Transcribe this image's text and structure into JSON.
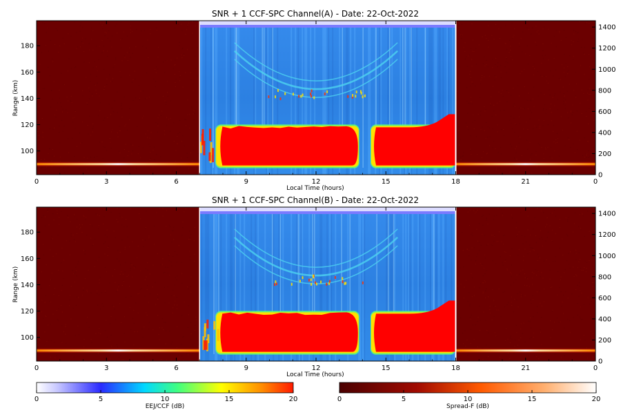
{
  "panels": [
    {
      "chart_data": {
        "type": "heatmap",
        "title": "SNR + 1 CCF-SPC Channel(A) - Date: 22-Oct-2022",
        "xlabel": "Local Time (hours)",
        "ylabel": "Range (km)",
        "x_ticks": [
          "0",
          "3",
          "6",
          "9",
          "12",
          "15",
          "18",
          "21",
          "0"
        ],
        "y_ticks": [
          100,
          120,
          140,
          160,
          180
        ],
        "y2_ticks": [
          0,
          200,
          400,
          600,
          800,
          1000,
          1200,
          1400
        ],
        "ylim": [
          82,
          199
        ],
        "y2lim": [
          0,
          1460
        ],
        "spread_f_window_hours": [
          [
            0,
            7
          ],
          [
            18,
            24
          ]
        ],
        "eej_window_hours": [
          7,
          18
        ],
        "features": [
          {
            "name": "EEJ/CCF echo band",
            "start_hour": 7.8,
            "end_hour": 18,
            "bottom_km": 89,
            "top_km": 118
          },
          {
            "name": "Data gap",
            "start_hour": 13.8,
            "end_hour": 14.4
          },
          {
            "name": "Valley echo arc",
            "start_hour": 8.5,
            "end_hour": 15.5,
            "peak_km": 176,
            "lowest_km": 147
          }
        ]
      }
    },
    {
      "chart_data": {
        "type": "heatmap",
        "title": "SNR + 1 CCF-SPC Channel(B) - Date: 22-Oct-2022",
        "xlabel": "Local Time (hours)",
        "ylabel": "Range (km)",
        "x_ticks": [
          "0",
          "3",
          "6",
          "9",
          "12",
          "15",
          "18",
          "21",
          "0"
        ],
        "y_ticks": [
          100,
          120,
          140,
          160,
          180
        ],
        "y2_ticks": [
          0,
          200,
          400,
          600,
          800,
          1000,
          1200,
          1400
        ],
        "ylim": [
          82,
          199
        ],
        "y2lim": [
          0,
          1460
        ],
        "spread_f_window_hours": [
          [
            0,
            7
          ],
          [
            18,
            24
          ]
        ],
        "eej_window_hours": [
          7,
          18
        ],
        "features": [
          {
            "name": "EEJ/CCF echo band",
            "start_hour": 7.8,
            "end_hour": 18,
            "bottom_km": 89,
            "top_km": 118
          },
          {
            "name": "Data gap",
            "start_hour": 13.8,
            "end_hour": 14.4
          },
          {
            "name": "Valley echo arc",
            "start_hour": 8.5,
            "end_hour": 15.5,
            "peak_km": 176,
            "lowest_km": 147
          }
        ]
      }
    }
  ],
  "colorbars": [
    {
      "label": "EEJ/CCF (dB)",
      "ticks": [
        0,
        5,
        10,
        15,
        20
      ],
      "colors": [
        "#ffffff",
        "#2a2aff",
        "#00d8ff",
        "#ffff00",
        "#ff2a00"
      ]
    },
    {
      "label": "Spread-F (dB)",
      "ticks": [
        0,
        5,
        10,
        15,
        20
      ],
      "colors": [
        "#5a0000",
        "#b01000",
        "#ff6a00",
        "#ffc080",
        "#ffffff"
      ]
    }
  ],
  "colors": {
    "spread_f_background": "#6b0000",
    "eej_background": "#2f84e6",
    "eej_echo": "#ff0000",
    "arc": "#4fd8f0"
  }
}
